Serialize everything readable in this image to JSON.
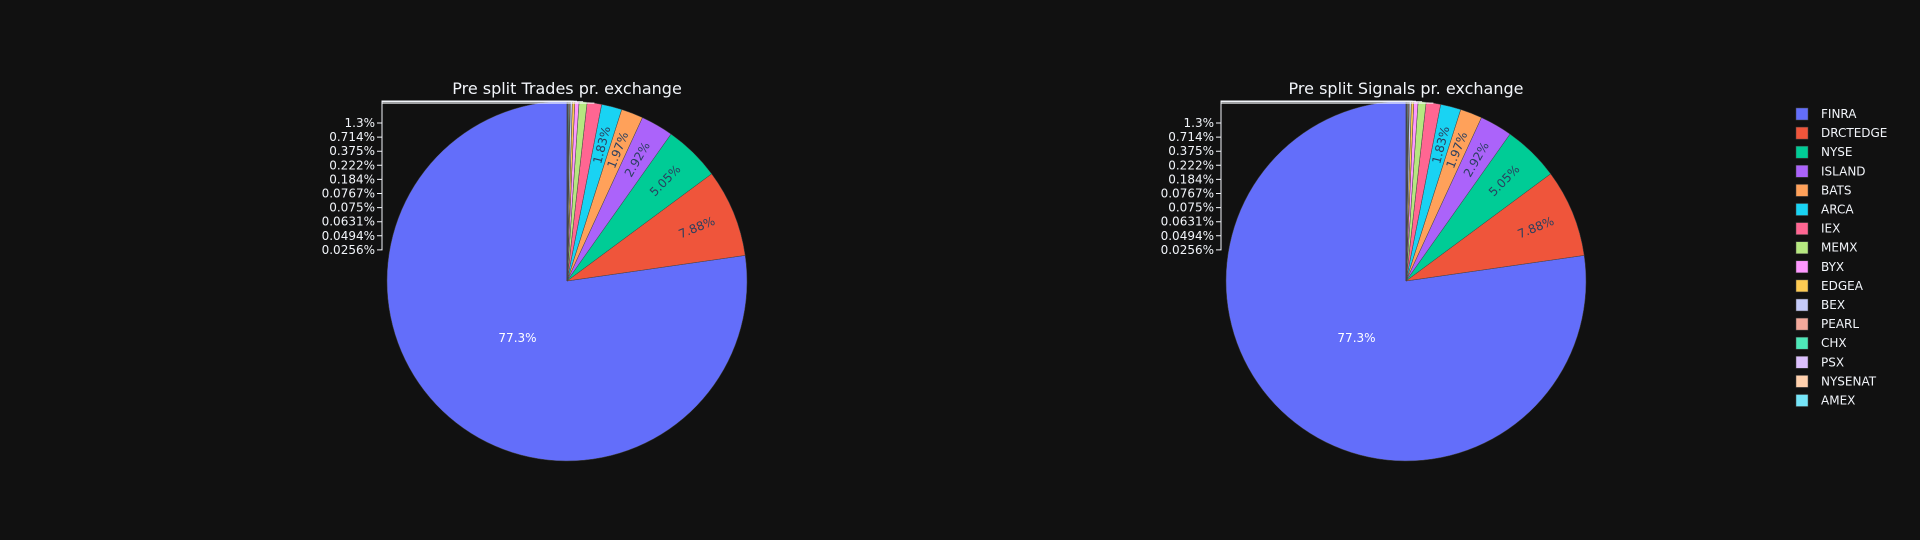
{
  "chart_data": [
    {
      "type": "pie",
      "title": "Pre split Trades pr. exchange",
      "labels": [
        "FINRA",
        "DRCTEDGE",
        "NYSE",
        "ISLAND",
        "BATS",
        "ARCA",
        "IEX",
        "MEMX",
        "BYX",
        "EDGEA",
        "BEX",
        "PEARL",
        "CHX",
        "PSX",
        "NYSENAT",
        "AMEX"
      ],
      "values": [
        77.3,
        7.88,
        5.05,
        2.92,
        1.97,
        1.83,
        1.3,
        0.714,
        0.375,
        0.222,
        0.184,
        0.0767,
        0.075,
        0.0631,
        0.0494,
        0.0256
      ],
      "text": [
        "77.3%",
        "7.88%",
        "5.05%",
        "2.92%",
        "1.97%",
        "1.83%",
        "1.3%",
        "0.714%",
        "0.375%",
        "0.222%",
        "0.184%",
        "0.0767%",
        "0.075%",
        "0.0631%",
        "0.0494%",
        "0.0256%"
      ]
    },
    {
      "type": "pie",
      "title": "Pre split Signals pr. exchange",
      "labels": [
        "FINRA",
        "DRCTEDGE",
        "NYSE",
        "ISLAND",
        "BATS",
        "ARCA",
        "IEX",
        "MEMX",
        "BYX",
        "EDGEA",
        "BEX",
        "PEARL",
        "CHX",
        "PSX",
        "NYSENAT",
        "AMEX"
      ],
      "values": [
        77.3,
        7.88,
        5.05,
        2.92,
        1.97,
        1.83,
        1.3,
        0.714,
        0.375,
        0.222,
        0.184,
        0.0767,
        0.075,
        0.0631,
        0.0494,
        0.0256
      ],
      "text": [
        "77.3%",
        "7.88%",
        "5.05%",
        "2.92%",
        "1.97%",
        "1.83%",
        "1.3%",
        "0.714%",
        "0.375%",
        "0.222%",
        "0.184%",
        "0.0767%",
        "0.075%",
        "0.0631%",
        "0.0494%",
        "0.0256%"
      ]
    }
  ],
  "legend": {
    "position": "top-right",
    "items": [
      "FINRA",
      "DRCTEDGE",
      "NYSE",
      "ISLAND",
      "BATS",
      "ARCA",
      "IEX",
      "MEMX",
      "BYX",
      "EDGEA",
      "BEX",
      "PEARL",
      "CHX",
      "PSX",
      "NYSENAT",
      "AMEX"
    ]
  },
  "colors": [
    "#636efa",
    "#EF553B",
    "#00cc96",
    "#ab63fa",
    "#FFA15A",
    "#19d3f3",
    "#FF6692",
    "#B6E880",
    "#FF97FF",
    "#FECB52",
    "#c6cbfa",
    "#f3a99b",
    "#4ee8b8",
    "#dcc0fd",
    "#ffd0ad",
    "#75e5f8"
  ],
  "theme": {
    "background": "#111111",
    "text": "#f2f5fa",
    "slice_border": "#444444"
  }
}
